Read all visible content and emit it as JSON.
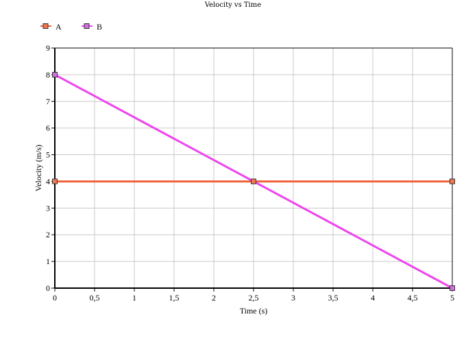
{
  "chart_data": {
    "type": "line",
    "title": "Velocity vs  Time",
    "xlabel": "Time (s)",
    "ylabel": "Velocity (m/s)",
    "xlim": [
      0,
      5
    ],
    "ylim": [
      0,
      9
    ],
    "x_ticks": [
      "0",
      "0,5",
      "1",
      "1,5",
      "2",
      "2,5",
      "3",
      "3,5",
      "4",
      "4,5",
      "5"
    ],
    "y_ticks": [
      "0",
      "1",
      "2",
      "3",
      "4",
      "5",
      "6",
      "7",
      "8",
      "9"
    ],
    "grid": true,
    "legend_position": "top-left",
    "series": [
      {
        "name": "A",
        "color": "#f0643c",
        "marker_color": "#f07850",
        "points": [
          [
            0,
            4
          ],
          [
            2.5,
            4
          ],
          [
            5,
            4
          ]
        ]
      },
      {
        "name": "B",
        "color": "#ee44ee",
        "marker_color": "#d070e0",
        "points": [
          [
            0,
            8
          ],
          [
            5,
            0
          ]
        ]
      }
    ]
  }
}
